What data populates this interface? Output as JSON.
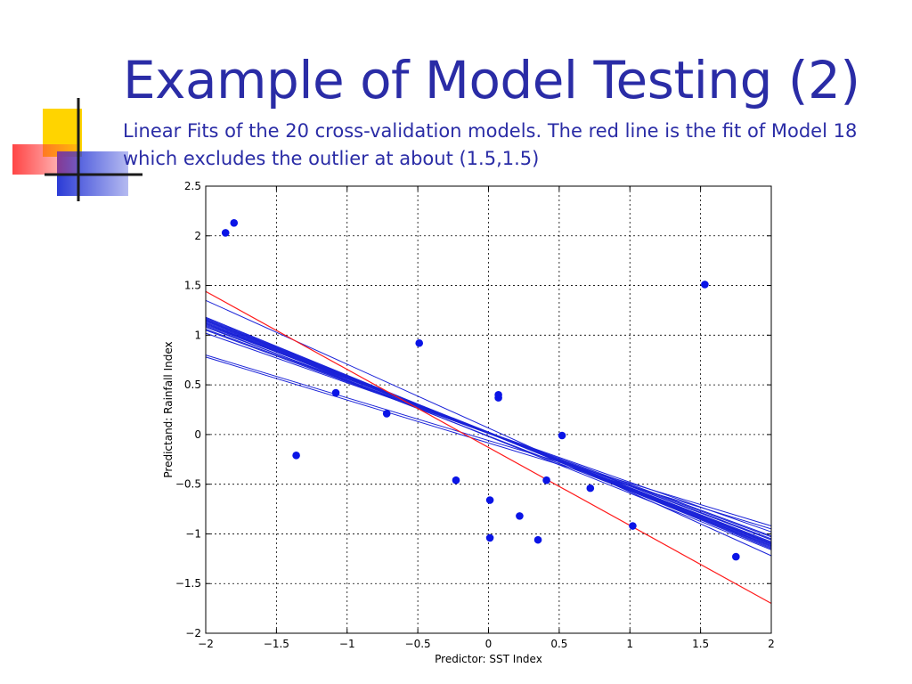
{
  "slide": {
    "title": "Example of Model Testing (2)",
    "subtitle": "Linear Fits of the 20 cross-validation models. The red line is the fit of Model 18 which excludes the outlier at about (1.5,1.5)"
  },
  "colors": {
    "title": "#2a2ca6",
    "points": "#0a14e6",
    "fit_lines": "#1a22d8",
    "highlight_fit": "#ff1a1a",
    "grid": "#000000",
    "logo_yellow": "#ffd400",
    "logo_red": "#ff3b3b",
    "logo_blue": "#2b3bd6"
  },
  "icons": [
    "logo-decoration-icon"
  ],
  "chart_data": {
    "type": "scatter",
    "title": "",
    "xlabel": "Predictor: SST Index",
    "ylabel": "Predictand: Rainfall Index",
    "xlim": [
      -2,
      2
    ],
    "ylim": [
      -2,
      2.5
    ],
    "xticks": [
      -2,
      -1.5,
      -1,
      -0.5,
      0,
      0.5,
      1,
      1.5,
      2
    ],
    "xtick_labels": [
      "−2",
      "−1.5",
      "−1",
      "−0.5",
      "0",
      "0.5",
      "1",
      "1.5",
      "2"
    ],
    "yticks": [
      -2,
      -1.5,
      -1,
      -0.5,
      0,
      0.5,
      1,
      1.5,
      2,
      2.5
    ],
    "ytick_labels": [
      "−2",
      "−1.5",
      "−1",
      "−0.5",
      "0",
      "0.5",
      "1",
      "1.5",
      "2",
      "2.5"
    ],
    "grid": true,
    "points": [
      {
        "x": -1.86,
        "y": 2.03
      },
      {
        "x": -1.8,
        "y": 2.13
      },
      {
        "x": -1.36,
        "y": -0.21
      },
      {
        "x": -1.08,
        "y": 0.42
      },
      {
        "x": -0.72,
        "y": 0.21
      },
      {
        "x": -0.49,
        "y": 0.92
      },
      {
        "x": -0.23,
        "y": -0.46
      },
      {
        "x": 0.01,
        "y": -0.66
      },
      {
        "x": 0.01,
        "y": -1.04
      },
      {
        "x": 0.07,
        "y": 0.4
      },
      {
        "x": 0.07,
        "y": 0.37
      },
      {
        "x": 0.22,
        "y": -0.82
      },
      {
        "x": 0.35,
        "y": -1.06
      },
      {
        "x": 0.41,
        "y": -0.46
      },
      {
        "x": 0.52,
        "y": -0.01
      },
      {
        "x": 0.72,
        "y": -0.54
      },
      {
        "x": 1.02,
        "y": -0.92
      },
      {
        "x": 1.53,
        "y": 1.51
      },
      {
        "x": 1.75,
        "y": -1.23
      }
    ],
    "fit_lines": [
      {
        "y_at_x_min": 0.8,
        "y_at_x_max": -0.92
      },
      {
        "y_at_x_min": 0.78,
        "y_at_x_max": -0.95
      },
      {
        "y_at_x_min": 1.05,
        "y_at_x_max": -1.03
      },
      {
        "y_at_x_min": 1.08,
        "y_at_x_max": -1.05
      },
      {
        "y_at_x_min": 1.1,
        "y_at_x_max": -1.06
      },
      {
        "y_at_x_min": 1.11,
        "y_at_x_max": -1.08
      },
      {
        "y_at_x_min": 1.12,
        "y_at_x_max": -1.09
      },
      {
        "y_at_x_min": 1.13,
        "y_at_x_max": -1.1
      },
      {
        "y_at_x_min": 1.14,
        "y_at_x_max": -1.11
      },
      {
        "y_at_x_min": 1.15,
        "y_at_x_max": -1.12
      },
      {
        "y_at_x_min": 1.16,
        "y_at_x_max": -1.13
      },
      {
        "y_at_x_min": 1.17,
        "y_at_x_max": -1.14
      },
      {
        "y_at_x_min": 1.18,
        "y_at_x_max": -1.15
      },
      {
        "y_at_x_min": 1.09,
        "y_at_x_max": -1.12
      },
      {
        "y_at_x_min": 1.12,
        "y_at_x_max": -1.16
      },
      {
        "y_at_x_min": 1.15,
        "y_at_x_max": -1.1
      },
      {
        "y_at_x_min": 1.06,
        "y_at_x_max": -1.02
      },
      {
        "y_at_x_min": 1.35,
        "y_at_x_max": -1.22
      },
      {
        "y_at_x_min": 1.02,
        "y_at_x_max": -0.98
      }
    ],
    "highlight_fit": {
      "y_at_x_min": 1.44,
      "y_at_x_max": -1.7
    }
  }
}
